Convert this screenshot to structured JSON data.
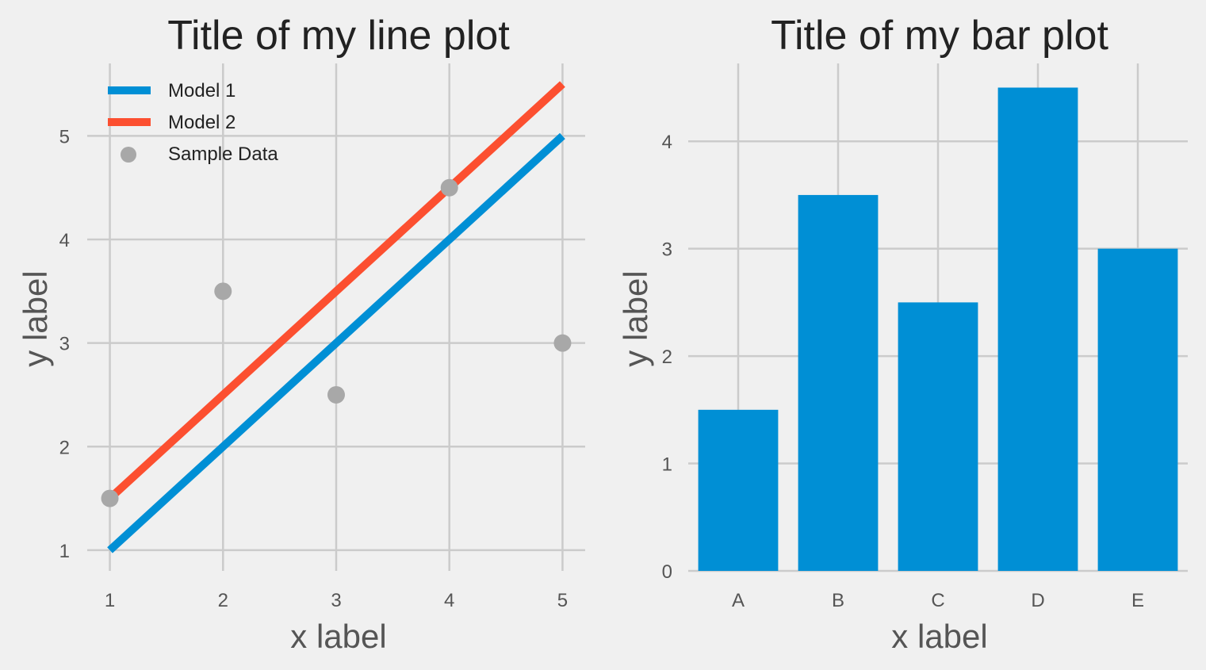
{
  "chart_data": [
    {
      "type": "line",
      "title": "Title of my line plot",
      "xlabel": "x label",
      "ylabel": "y label",
      "x": [
        1,
        2,
        3,
        4,
        5
      ],
      "xlim": [
        0.8,
        5.2
      ],
      "ylim": [
        0.8,
        5.7
      ],
      "xticks": [
        "1",
        "2",
        "3",
        "4",
        "5"
      ],
      "yticks": [
        "1",
        "2",
        "3",
        "4",
        "5"
      ],
      "grid": true,
      "legend_position": "top-left",
      "series": [
        {
          "name": "Model 1",
          "kind": "line",
          "color": "#008fd5",
          "values": [
            1,
            2,
            3,
            4,
            5
          ]
        },
        {
          "name": "Model 2",
          "kind": "line",
          "color": "#fc4f30",
          "values": [
            1.5,
            2.5,
            3.5,
            4.5,
            5.5
          ]
        },
        {
          "name": "Sample Data",
          "kind": "scatter",
          "color": "#a8a8a8",
          "values": [
            1.5,
            3.5,
            2.5,
            4.5,
            3
          ]
        }
      ]
    },
    {
      "type": "bar",
      "title": "Title of my bar plot",
      "xlabel": "x label",
      "ylabel": "y label",
      "categories": [
        "A",
        "B",
        "C",
        "D",
        "E"
      ],
      "values": [
        1.5,
        3.5,
        2.5,
        4.5,
        3
      ],
      "ylim": [
        0,
        4.725
      ],
      "yticks": [
        "0",
        "1",
        "2",
        "3",
        "4"
      ],
      "grid": true,
      "color": "#008fd5"
    }
  ]
}
